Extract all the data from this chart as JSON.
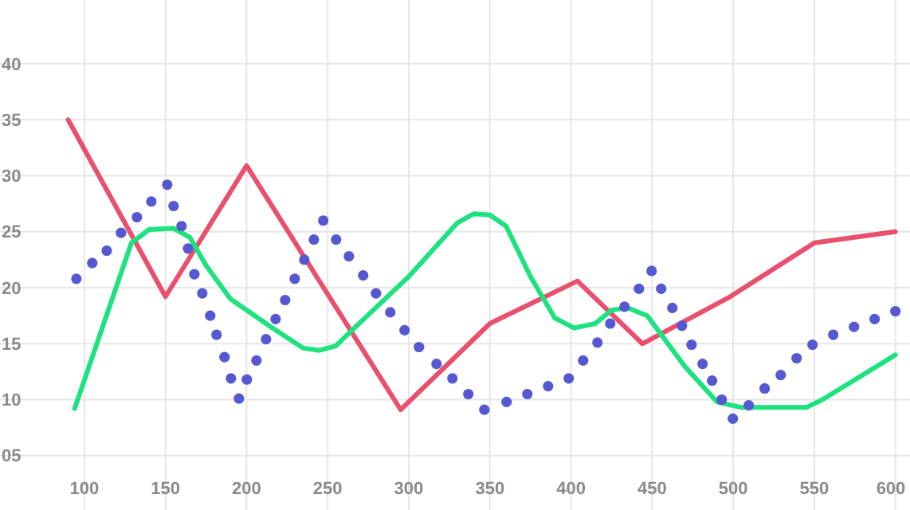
{
  "chart_data": {
    "type": "line",
    "xlim": [
      48,
      609
    ],
    "ylim": [
      0,
      45.7
    ],
    "xticks": [
      100,
      150,
      200,
      250,
      300,
      350,
      400,
      450,
      500,
      550,
      600
    ],
    "yticks": [
      {
        "value": 5,
        "label": "05"
      },
      10,
      15,
      20,
      25,
      30,
      35,
      40
    ],
    "grid": true,
    "series": [
      {
        "color": "#e8506e",
        "line_style": "solid",
        "marker": "none",
        "x": [
          90,
          150,
          200,
          295,
          350,
          404,
          444,
          497,
          550,
          600
        ],
        "values": [
          35,
          19.2,
          30.9,
          9.1,
          16.8,
          20.6,
          15,
          19.1,
          24,
          25
        ]
      },
      {
        "color": "#1de27f",
        "line_style": "solid",
        "marker": "none",
        "x": [
          94,
          129,
          140,
          155,
          165,
          175,
          190,
          215,
          235,
          245,
          255,
          265,
          300,
          330,
          340,
          350,
          360,
          375,
          390,
          402,
          415,
          425,
          435,
          447,
          470,
          490,
          505,
          545,
          555,
          600
        ],
        "values": [
          9.2,
          24,
          25.2,
          25.3,
          24.5,
          22,
          19,
          16.5,
          14.6,
          14.4,
          14.8,
          16.2,
          21,
          25.8,
          26.6,
          26.5,
          25.5,
          21,
          17.3,
          16.4,
          16.8,
          18,
          18.2,
          17.5,
          13,
          9.8,
          9.3,
          9.3,
          10,
          14
        ]
      },
      {
        "type": "scatter",
        "color": "#5558d0",
        "marker": "circle",
        "x": [
          95.1,
          104.9,
          113.8,
          122.6,
          132.4,
          141.3,
          151.1,
          155,
          159.9,
          163.9,
          167.8,
          172.7,
          177.6,
          181.5,
          186.4,
          190.4,
          195.3,
          200.2,
          206.1,
          212,
          217.9,
          223.8,
          229.7,
          235.6,
          241.5,
          247.3,
          255.2,
          263.1,
          271.9,
          279.8,
          288.6,
          297.4,
          306.3,
          317.1,
          326.9,
          336.7,
          346.6,
          360.3,
          373.1,
          385.9,
          398.6,
          407.5,
          416.3,
          424.2,
          433,
          441.9,
          449.7,
          455.6,
          462.5,
          468.4,
          474.3,
          481.1,
          487,
          492.9,
          499.8,
          509.6,
          519.4,
          529.3,
          539.1,
          548.9,
          561.7,
          574.5,
          587.2,
          600
        ],
        "values": [
          20.8,
          22.2,
          23.3,
          24.9,
          26.3,
          27.7,
          29.2,
          27.3,
          25.5,
          23.5,
          21.2,
          19.5,
          17.5,
          15.8,
          13.8,
          11.9,
          10.1,
          11.8,
          13.5,
          15.4,
          17.2,
          18.9,
          20.8,
          22.5,
          24.3,
          26,
          24.3,
          22.8,
          21.1,
          19.5,
          17.8,
          16.2,
          14.7,
          13.2,
          11.9,
          10.5,
          9.1,
          9.8,
          10.5,
          11.2,
          11.9,
          13.5,
          15.1,
          16.8,
          18.3,
          19.9,
          21.5,
          19.9,
          18.2,
          16.6,
          14.9,
          13.2,
          11.7,
          10,
          8.3,
          9.5,
          11,
          12.2,
          13.7,
          14.9,
          15.8,
          16.5,
          17.2,
          17.9
        ]
      }
    ]
  }
}
